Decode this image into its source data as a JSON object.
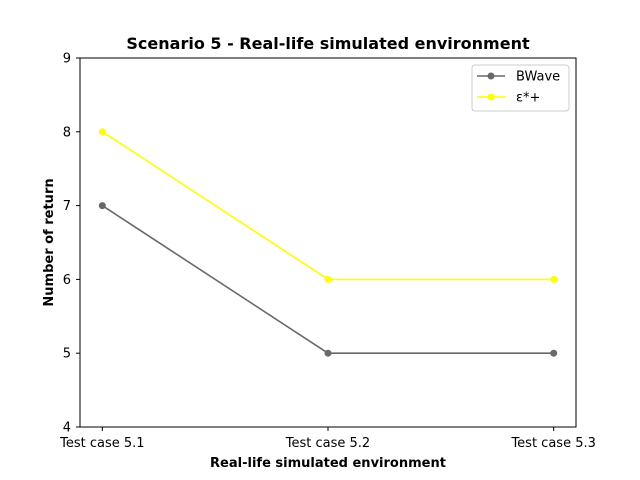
{
  "chart_data": {
    "type": "line",
    "title": "Scenario 5 - Real-life simulated environment",
    "xlabel": "Real-life simulated environment",
    "ylabel": "Number of return",
    "categories": [
      "Test case 5.1",
      "Test case 5.2",
      "Test case 5.3"
    ],
    "ylim": [
      4,
      9
    ],
    "yticks": [
      4,
      5,
      6,
      7,
      8,
      9
    ],
    "grid": false,
    "legend_position": "top-right",
    "series": [
      {
        "name": "BWave",
        "values": [
          7,
          5,
          5
        ],
        "color": "#696969",
        "marker": "circle"
      },
      {
        "name": "ε*+",
        "values": [
          8,
          6,
          6
        ],
        "color": "#ffff00",
        "marker": "circle"
      }
    ]
  }
}
